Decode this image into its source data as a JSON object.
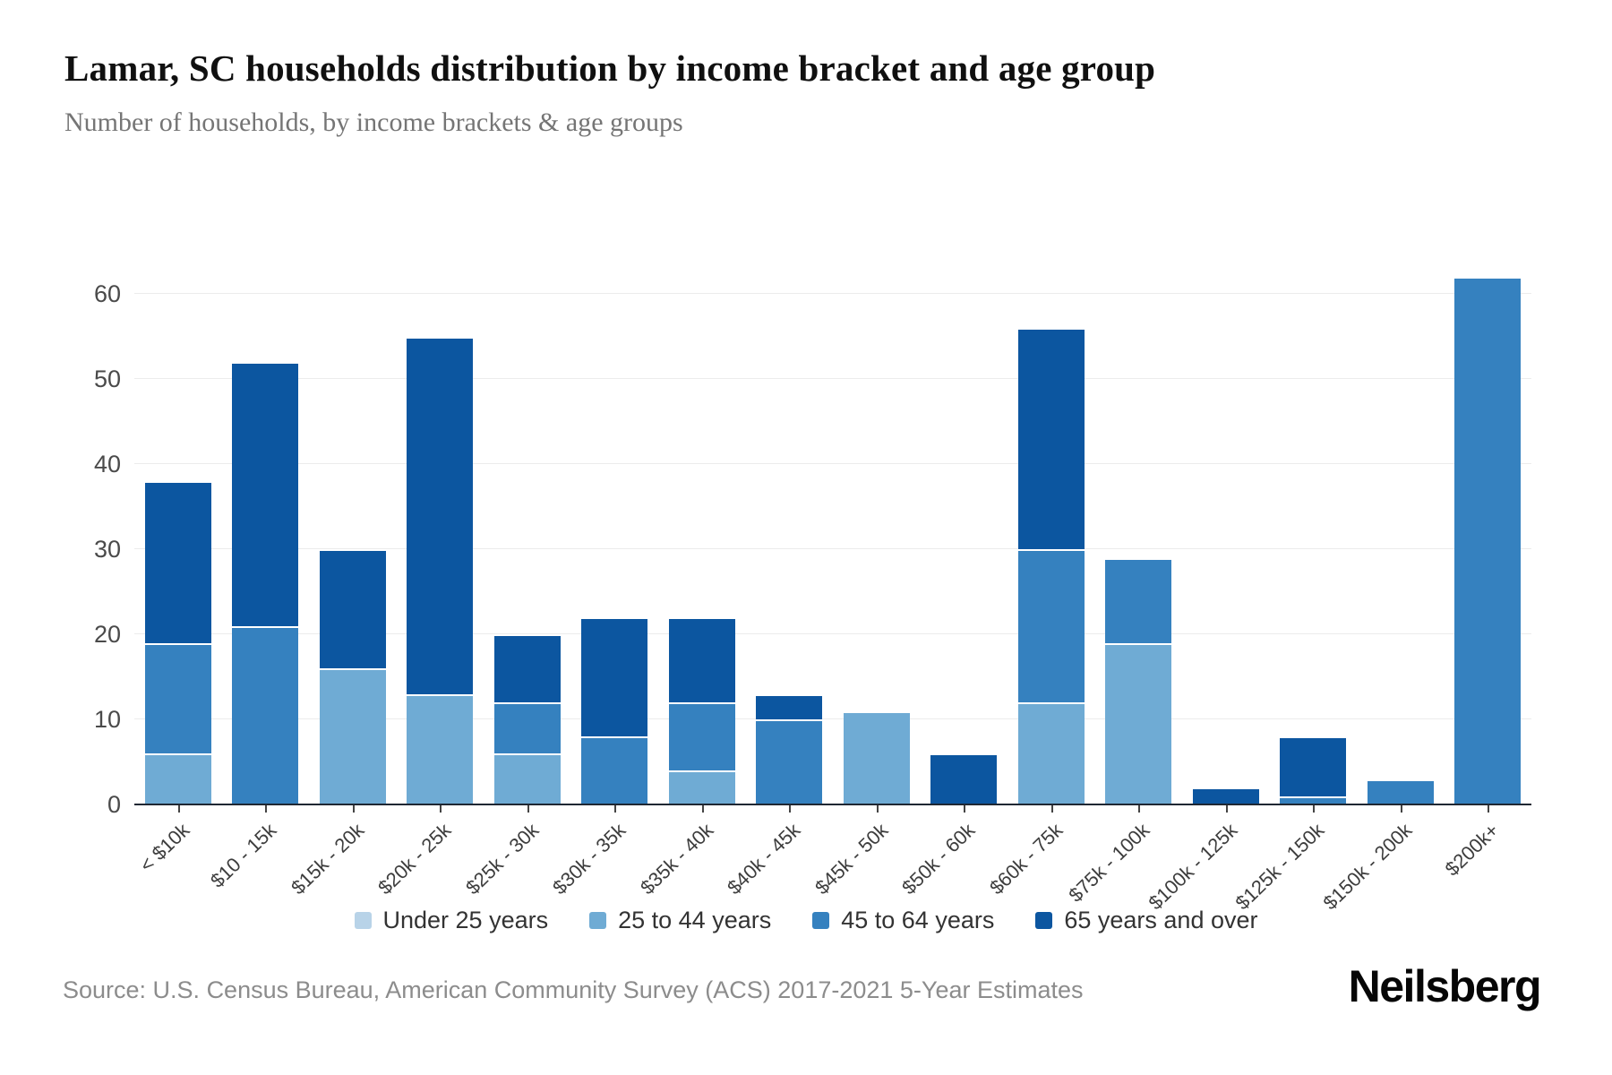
{
  "header": {
    "title": "Lamar, SC households distribution by income bracket and age group",
    "subtitle": "Number of households, by income brackets & age groups"
  },
  "chart_data": {
    "type": "bar",
    "stacked": true,
    "title": "Lamar, SC households distribution by income bracket and age group",
    "xlabel": "",
    "ylabel": "",
    "ylim": [
      0,
      60
    ],
    "yticks": [
      0,
      10,
      20,
      30,
      40,
      50,
      60
    ],
    "grid": true,
    "legend_position": "bottom",
    "categories": [
      "< $10k",
      "$10 - 15k",
      "$15k - 20k",
      "$20k - 25k",
      "$25k - 30k",
      "$30k - 35k",
      "$35k - 40k",
      "$40k - 45k",
      "$45k - 50k",
      "$50k - 60k",
      "$60k - 75k",
      "$75k - 100k",
      "$100k - 125k",
      "$125k - 150k",
      "$150k - 200k",
      "$200k+"
    ],
    "series": [
      {
        "name": "Under 25 years",
        "color": "#b8d3e8",
        "values": [
          0,
          0,
          0,
          0,
          0,
          0,
          0,
          0,
          0,
          0,
          0,
          0,
          0,
          0,
          0,
          0
        ]
      },
      {
        "name": "25 to 44 years",
        "color": "#6fabd4",
        "values": [
          6,
          0,
          16,
          13,
          6,
          0,
          4,
          0,
          11,
          0,
          12,
          19,
          0,
          0,
          0,
          0
        ]
      },
      {
        "name": "45 to 64 years",
        "color": "#3581bf",
        "values": [
          13,
          21,
          0,
          0,
          6,
          8,
          8,
          10,
          0,
          0,
          18,
          10,
          0,
          1,
          3,
          62
        ]
      },
      {
        "name": "65 years and over",
        "color": "#0c56a0",
        "values": [
          19,
          31,
          14,
          42,
          8,
          14,
          10,
          3,
          0,
          6,
          26,
          0,
          2,
          7,
          0,
          0
        ]
      }
    ],
    "totals": [
      38,
      52,
      30,
      55,
      20,
      22,
      22,
      13,
      11,
      6,
      56,
      29,
      2,
      8,
      3,
      62
    ]
  },
  "footer": {
    "source": "Source: U.S. Census Bureau, American Community Survey (ACS) 2017-2021 5-Year Estimates",
    "brand": "Neilsberg"
  }
}
